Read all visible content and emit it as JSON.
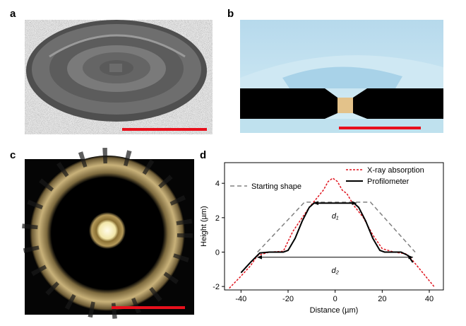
{
  "panels": [
    {
      "label": "a"
    },
    {
      "label": "b"
    },
    {
      "label": "c"
    },
    {
      "label": "d"
    }
  ],
  "chart_data": {
    "type": "line",
    "xlabel": "Distance (µm)",
    "ylabel": "Height (µm)",
    "xlim": [
      -47,
      46
    ],
    "ylim": [
      -2.2,
      5.2
    ],
    "xticks": [
      -40,
      -20,
      0,
      20,
      40
    ],
    "yticks": [
      -2,
      0,
      2,
      4
    ],
    "series": [
      {
        "name": "Starting shape",
        "color": "#808080",
        "dash": "6,4",
        "x": [
          -33,
          -13,
          15,
          34
        ],
        "values": [
          0,
          2.9,
          2.9,
          0
        ]
      },
      {
        "name": "X-ray absorption",
        "color": "#e0141e",
        "dash": "3,2",
        "x": [
          -45,
          -40,
          -36,
          -33,
          -28,
          -22,
          -18,
          -14,
          -11,
          -8,
          -5,
          -3,
          -1,
          1,
          3,
          5,
          8,
          12,
          16,
          20,
          25,
          30,
          33,
          36,
          39,
          42
        ],
        "values": [
          -2.1,
          -1.4,
          -0.8,
          -0.2,
          0,
          0.05,
          1.2,
          2.0,
          2.6,
          3.1,
          3.6,
          4.1,
          4.3,
          4.1,
          3.6,
          3.4,
          2.7,
          2.0,
          1.0,
          0.2,
          0,
          -0.1,
          -0.5,
          -1.0,
          -1.5,
          -2.0
        ]
      },
      {
        "name": "Profilometer",
        "color": "#000000",
        "dash": "",
        "x": [
          -40,
          -36,
          -32,
          -28,
          -22,
          -20,
          -17,
          -14,
          -11,
          -9,
          0,
          8,
          10,
          13,
          16,
          19,
          21,
          28,
          31,
          33
        ],
        "values": [
          -1.2,
          -0.6,
          -0.05,
          0,
          0,
          0.1,
          0.8,
          1.8,
          2.6,
          2.85,
          2.85,
          2.85,
          2.6,
          1.8,
          0.8,
          0.1,
          0,
          0,
          -0.2,
          -0.6
        ]
      }
    ],
    "annotations": [
      {
        "text": "d₁",
        "x": [
          -9,
          9
        ],
        "y": 2.85
      },
      {
        "text": "d₂",
        "x": [
          -33,
          33
        ],
        "y": -0.3
      }
    ]
  }
}
